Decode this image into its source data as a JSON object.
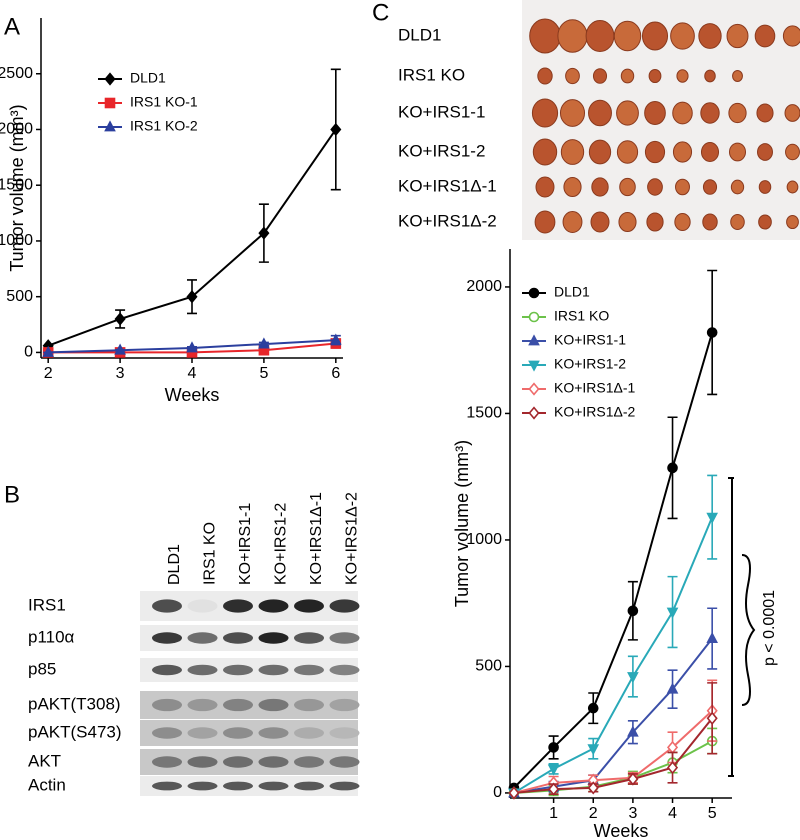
{
  "panel_labels": [
    "A",
    "B",
    "C"
  ],
  "chart_data": [
    {
      "type": "line",
      "xlabel": "Weeks",
      "ylabel": "Tumor volume (mm³)",
      "x": [
        2,
        3,
        4,
        5,
        6
      ],
      "xlim": [
        1.9,
        6.1
      ],
      "xticks": [
        2,
        3,
        4,
        5,
        6
      ],
      "ylim": [
        -50,
        3000
      ],
      "yticks": [
        0,
        500,
        1000,
        1500,
        2000,
        2500
      ],
      "legend": "upper left",
      "series": [
        {
          "name": "DLD1",
          "color": "#000000",
          "marker": "diamond",
          "filled": true,
          "values": [
            60,
            300,
            500,
            1070,
            2000
          ],
          "errors": [
            0,
            80,
            150,
            260,
            540
          ]
        },
        {
          "name": "IRS1 KO-1",
          "color": "#e8262a",
          "marker": "square",
          "filled": true,
          "values": [
            0,
            0,
            0,
            20,
            80
          ],
          "errors": [
            0,
            0,
            0,
            10,
            40
          ]
        },
        {
          "name": "IRS1 KO-2",
          "color": "#2b3f9e",
          "marker": "triangle",
          "filled": true,
          "values": [
            0,
            20,
            40,
            75,
            110
          ],
          "errors": [
            0,
            5,
            10,
            15,
            40
          ]
        }
      ]
    },
    {
      "type": "line",
      "xlabel": "Weeks",
      "ylabel": "Tumor volume (mm³)",
      "x": [
        0,
        1,
        2,
        3,
        4,
        5
      ],
      "xlim": [
        -0.1,
        5.5
      ],
      "xticks": [
        1,
        2,
        3,
        4,
        5
      ],
      "ylim": [
        -20,
        2150
      ],
      "yticks": [
        0,
        500,
        1000,
        1500,
        2000
      ],
      "legend": "upper left",
      "series": [
        {
          "name": "DLD1",
          "color": "#000000",
          "marker": "circle",
          "filled": true,
          "values": [
            20,
            180,
            335,
            720,
            1285,
            1820
          ],
          "errors": [
            0,
            45,
            60,
            115,
            200,
            245
          ]
        },
        {
          "name": "IRS1 KO",
          "color": "#6cc24a",
          "marker": "circle",
          "filled": false,
          "values": [
            0,
            10,
            25,
            60,
            120,
            205
          ],
          "errors": [
            0,
            20,
            20,
            25,
            40,
            50
          ]
        },
        {
          "name": "KO+IRS1-1",
          "color": "#3b4fa8",
          "marker": "triangle",
          "filled": true,
          "values": [
            0,
            25,
            50,
            240,
            410,
            610
          ],
          "errors": [
            0,
            20,
            20,
            45,
            75,
            120
          ]
        },
        {
          "name": "KO+IRS1-2",
          "color": "#29a9b8",
          "marker": "tri-down",
          "filled": true,
          "values": [
            0,
            95,
            175,
            460,
            715,
            1090
          ],
          "errors": [
            0,
            20,
            40,
            80,
            140,
            165
          ]
        },
        {
          "name": "KO+IRS1Δ-1",
          "color": "#ef6b6b",
          "marker": "diamond",
          "filled": false,
          "values": [
            0,
            40,
            50,
            60,
            180,
            325
          ],
          "errors": [
            0,
            25,
            20,
            20,
            60,
            120
          ]
        },
        {
          "name": "KO+IRS1Δ-2",
          "color": "#a3272d",
          "marker": "diamond",
          "filled": false,
          "values": [
            0,
            15,
            20,
            55,
            100,
            295
          ],
          "errors": [
            0,
            20,
            15,
            20,
            60,
            140
          ]
        }
      ]
    }
  ],
  "blot": {
    "columns": [
      "DLD1",
      "IRS1 KO",
      "KO+IRS1-1",
      "KO+IRS1-2",
      "KO+IRS1Δ-1",
      "KO+IRS1Δ-2"
    ],
    "rows": [
      "IRS1",
      "p110α",
      "p85",
      "pAKT(T308)",
      "pAKT(S473)",
      "AKT",
      "Actin"
    ]
  },
  "photo": {
    "rows": [
      "DLD1",
      "IRS1 KO",
      "KO+IRS1-1",
      "KO+IRS1-2",
      "KO+IRS1Δ-1",
      "KO+IRS1Δ-2"
    ]
  },
  "annotation": "p < 0.0001"
}
